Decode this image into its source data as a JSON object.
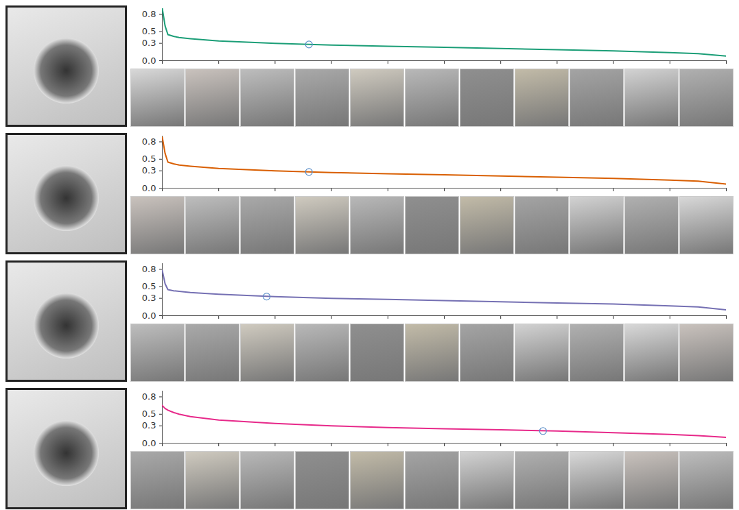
{
  "chart_data": [
    {
      "type": "line",
      "color": "#1b9e77",
      "tick_labels": "y",
      "marker": "circle",
      "x": [
        0,
        0.5,
        1,
        2,
        3,
        5,
        10,
        20,
        30,
        40,
        50,
        60,
        70,
        80,
        90,
        95,
        100
      ],
      "values": [
        0.9,
        0.6,
        0.45,
        0.42,
        0.4,
        0.38,
        0.34,
        0.3,
        0.27,
        0.25,
        0.23,
        0.21,
        0.19,
        0.17,
        0.14,
        0.12,
        0.08
      ],
      "highlight": {
        "x": 26,
        "y": 0.28
      },
      "xlim": [
        0,
        100
      ],
      "xticks": [
        0,
        10,
        20,
        30,
        40,
        50,
        60,
        70,
        80,
        90,
        100
      ],
      "ylim": [
        0,
        0.9
      ],
      "yticks": [
        {
          "value": 0,
          "label": "0.0"
        },
        0.3,
        0.5,
        0.8
      ]
    },
    {
      "type": "line",
      "color": "#d95f02",
      "tick_labels": "y",
      "marker": "circle",
      "x": [
        0,
        0.5,
        1,
        2,
        3,
        5,
        10,
        20,
        30,
        40,
        50,
        60,
        70,
        80,
        90,
        95,
        100
      ],
      "values": [
        0.88,
        0.6,
        0.45,
        0.42,
        0.4,
        0.38,
        0.34,
        0.3,
        0.27,
        0.25,
        0.23,
        0.21,
        0.19,
        0.17,
        0.14,
        0.12,
        0.07
      ],
      "highlight": {
        "x": 26,
        "y": 0.28
      },
      "xlim": [
        0,
        100
      ],
      "xticks": [
        0,
        10,
        20,
        30,
        40,
        50,
        60,
        70,
        80,
        90,
        100
      ],
      "ylim": [
        0,
        0.9
      ],
      "yticks": [
        {
          "value": 0,
          "label": "0.0"
        },
        0.3,
        0.5,
        0.8
      ]
    },
    {
      "type": "line",
      "color": "#7570b3",
      "tick_labels": "y",
      "marker": "circle",
      "x": [
        0,
        0.5,
        1,
        2,
        3,
        5,
        10,
        20,
        30,
        40,
        50,
        60,
        70,
        80,
        90,
        95,
        100
      ],
      "values": [
        0.78,
        0.55,
        0.45,
        0.43,
        0.42,
        0.4,
        0.37,
        0.33,
        0.3,
        0.28,
        0.26,
        0.24,
        0.22,
        0.2,
        0.17,
        0.15,
        0.1
      ],
      "highlight": {
        "x": 18.5,
        "y": 0.33
      },
      "xlim": [
        0,
        100
      ],
      "xticks": [
        0,
        10,
        20,
        30,
        40,
        50,
        60,
        70,
        80,
        90,
        100
      ],
      "ylim": [
        0,
        0.9
      ],
      "yticks": [
        {
          "value": 0,
          "label": "0.0"
        },
        0.3,
        0.5,
        0.8
      ]
    },
    {
      "type": "line",
      "color": "#e7298a",
      "tick_labels": "y",
      "marker": "circle",
      "x": [
        0,
        0.5,
        1,
        2,
        3,
        5,
        10,
        20,
        30,
        40,
        50,
        60,
        70,
        80,
        90,
        95,
        100
      ],
      "values": [
        0.65,
        0.6,
        0.57,
        0.53,
        0.5,
        0.46,
        0.4,
        0.34,
        0.3,
        0.27,
        0.25,
        0.23,
        0.21,
        0.18,
        0.15,
        0.13,
        0.1
      ],
      "highlight": {
        "x": 67.5,
        "y": 0.21
      },
      "xlim": [
        0,
        100
      ],
      "xticks": [
        0,
        10,
        20,
        30,
        40,
        50,
        60,
        70,
        80,
        90,
        100
      ],
      "ylim": [
        0,
        0.9
      ],
      "yticks": [
        {
          "value": 0,
          "label": "0.0"
        },
        0.3,
        0.5,
        0.8
      ]
    }
  ]
}
